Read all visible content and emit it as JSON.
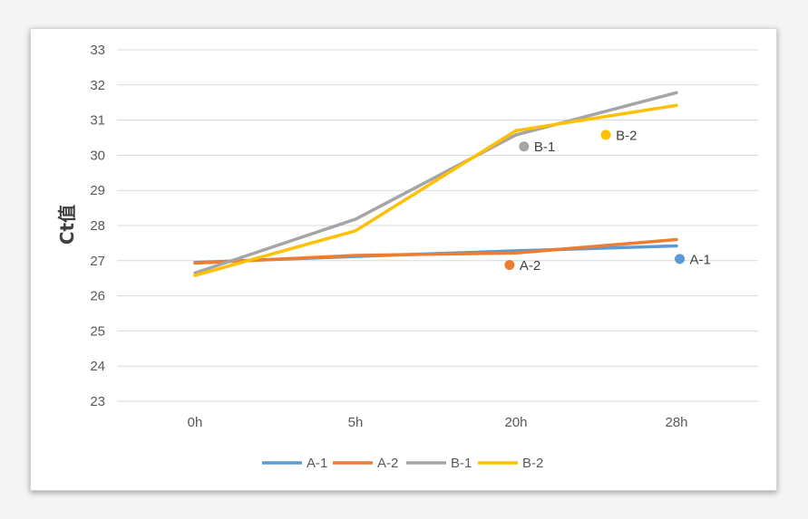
{
  "chart_data": {
    "type": "line",
    "ylabel": "Ct值",
    "xlabel": "",
    "title": "",
    "categories": [
      "0h",
      "5h",
      "20h",
      "28h"
    ],
    "ylim": [
      23,
      33
    ],
    "ytick_step": 1,
    "grid": true,
    "legend_position": "bottom",
    "series": [
      {
        "name": "A-1",
        "color": "#5b9bd5",
        "values": [
          26.95,
          27.12,
          27.28,
          27.42
        ]
      },
      {
        "name": "A-2",
        "color": "#ed7d31",
        "values": [
          26.93,
          27.15,
          27.22,
          27.6
        ]
      },
      {
        "name": "B-1",
        "color": "#a5a5a5",
        "values": [
          26.65,
          28.18,
          30.58,
          31.78
        ]
      },
      {
        "name": "B-2",
        "color": "#ffc000",
        "values": [
          26.58,
          27.85,
          30.7,
          31.42
        ]
      }
    ],
    "annotations": [
      {
        "label": "A-1",
        "color": "#5b9bd5",
        "x": 3.02,
        "y": 27.05
      },
      {
        "label": "A-2",
        "color": "#ed7d31",
        "x": 1.96,
        "y": 26.88
      },
      {
        "label": "B-1",
        "color": "#a5a5a5",
        "x": 2.05,
        "y": 30.25
      },
      {
        "label": "B-2",
        "color": "#ffc000",
        "x": 2.56,
        "y": 30.58
      }
    ]
  }
}
